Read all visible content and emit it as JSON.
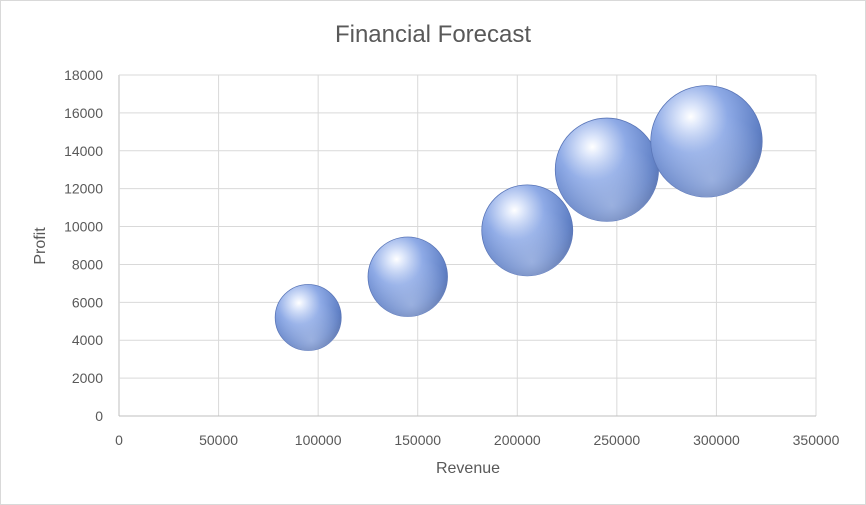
{
  "chart_data": {
    "type": "scatter",
    "subtype": "bubble",
    "title": "Financial Forecast",
    "xlabel": "Revenue",
    "ylabel": "Profit",
    "xlim": [
      0,
      350000
    ],
    "ylim": [
      0,
      18000
    ],
    "x_ticks": [
      "0",
      "50000",
      "100000",
      "150000",
      "200000",
      "250000",
      "300000",
      "350000"
    ],
    "y_ticks": [
      "0",
      "2000",
      "4000",
      "6000",
      "8000",
      "10000",
      "12000",
      "14000",
      "16000",
      "18000"
    ],
    "grid": true,
    "legend": "none",
    "series": [
      {
        "color": "#6f8fd8",
        "points": [
          {
            "x": 95000,
            "y": 5200,
            "size": 1
          },
          {
            "x": 145000,
            "y": 7350,
            "size": 1.45
          },
          {
            "x": 205000,
            "y": 9800,
            "size": 1.9
          },
          {
            "x": 245000,
            "y": 13000,
            "size": 2.45
          },
          {
            "x": 295000,
            "y": 14500,
            "size": 2.85
          }
        ]
      }
    ]
  }
}
